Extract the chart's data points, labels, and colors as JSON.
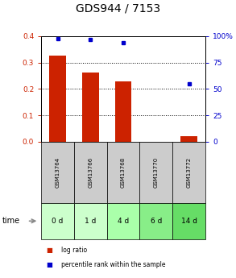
{
  "title": "GDS944 / 7153",
  "samples": [
    "GSM13764",
    "GSM13766",
    "GSM13768",
    "GSM13770",
    "GSM13772"
  ],
  "time_labels": [
    "0 d",
    "1 d",
    "4 d",
    "6 d",
    "14 d"
  ],
  "log_ratio": [
    0.327,
    0.262,
    0.228,
    0.0,
    0.022
  ],
  "percentile_rank": [
    97.5,
    96.5,
    93.5,
    0.0,
    55.0
  ],
  "bar_color": "#cc2200",
  "dot_color": "#0000cc",
  "ylim_left": [
    0,
    0.4
  ],
  "ylim_right": [
    0,
    100
  ],
  "yticks_left": [
    0,
    0.1,
    0.2,
    0.3,
    0.4
  ],
  "yticks_right": [
    0,
    25,
    50,
    75,
    100
  ],
  "bg_color": "#ffffff",
  "sample_bg": "#cccccc",
  "time_bg_colors": [
    "#ccffcc",
    "#ccffcc",
    "#aaffaa",
    "#88ee88",
    "#66dd66"
  ],
  "time_label": "time",
  "legend_log": "log ratio",
  "legend_pct": "percentile rank within the sample",
  "title_fontsize": 10,
  "tick_fontsize": 6.5,
  "bar_width": 0.5
}
